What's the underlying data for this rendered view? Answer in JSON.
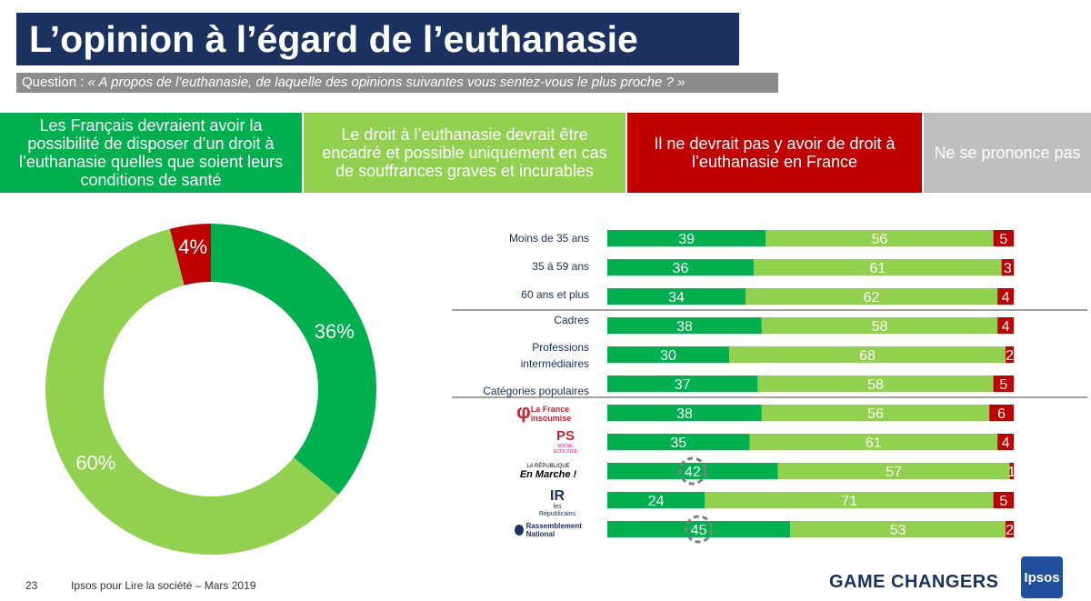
{
  "title": "L’opinion à l’égard de l’euthanasie",
  "question": {
    "prefix": "Question : ",
    "text": "« A propos de l’euthanasie, de laquelle des opinions suivantes vous sentez-vous le plus proche ? »"
  },
  "legend": [
    {
      "label": "Les Français devraient avoir la possibilité de disposer d’un droit à l’euthanasie quelles que soient leurs conditions de santé",
      "color": "#00b04f"
    },
    {
      "label": "Le droit à l’euthanasie devrait être encadré et possible uniquement en cas de souffrances graves et incurables",
      "color": "#92d050"
    },
    {
      "label": "Il ne devrait pas y avoir de droit à l’euthanasie en France",
      "color": "#c00000"
    },
    {
      "label": "Ne se prononce pas",
      "color": "#bfbfbf"
    }
  ],
  "chart_data": [
    {
      "type": "pie",
      "donut": true,
      "slices": [
        {
          "label": "36%",
          "value": 36,
          "color": "#00b04f"
        },
        {
          "label": "60%",
          "value": 60,
          "color": "#92d050"
        },
        {
          "label": "4%",
          "value": 4,
          "color": "#c00000"
        }
      ]
    },
    {
      "type": "bar",
      "stacked": true,
      "orientation": "horizontal",
      "categories": [
        "Moins de 35 ans",
        "35 à 59 ans",
        "60 ans et plus",
        "Cadres",
        "Professions intermédiaires",
        "Catégories populaires",
        "La France insoumise",
        "PS",
        "La République En Marche !",
        "Les Républicains",
        "Rassemblement National"
      ],
      "series": [
        {
          "color": "#00b04f",
          "values": [
            39,
            36,
            34,
            38,
            30,
            37,
            38,
            35,
            42,
            24,
            45
          ]
        },
        {
          "color": "#92d050",
          "values": [
            56,
            61,
            62,
            58,
            68,
            58,
            56,
            61,
            57,
            71,
            53
          ]
        },
        {
          "color": "#c00000",
          "values": [
            5,
            3,
            4,
            4,
            2,
            5,
            6,
            4,
            1,
            5,
            2
          ]
        }
      ],
      "highlighted": [
        "La République En Marche !",
        "Rassemblement National"
      ]
    }
  ],
  "row_labels": {
    "age1": "Moins de 35 ans",
    "age2": "35 à 59 ans",
    "age3": "60 ans et plus",
    "csp1": "Cadres",
    "csp2a": "Professions",
    "csp2b": "intermédiaires",
    "csp3": "Catégories populaires"
  },
  "party_logos": {
    "lfi": "La France insoumise",
    "ps": "PS",
    "ps_sub": "SOCIAL ÉCOLOGIE",
    "lrem_small": "LA RÉPUBLIQUE",
    "lrem": "En Marche !",
    "lr": "les Républicains",
    "rn": "Rassemblement National"
  },
  "footer": {
    "page": "23",
    "source": "Ipsos pour Lire la société – Mars 2019",
    "tagline": "GAME CHANGERS",
    "logo": "Ipsos"
  }
}
